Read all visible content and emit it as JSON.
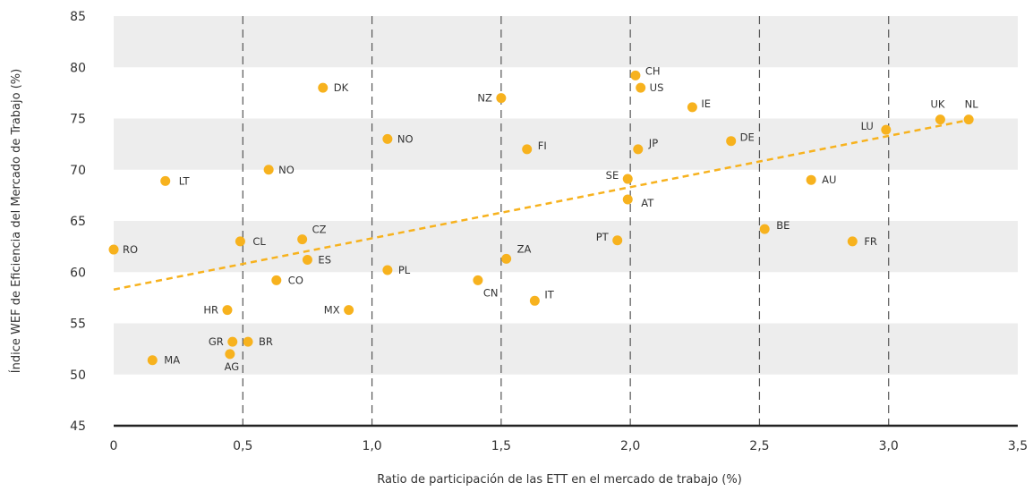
{
  "chart_data": {
    "type": "scatter",
    "xlabel": "Ratio de participación de las ETT en el mercado de trabajo (%)",
    "ylabel": "Índice WEF de Eficiencia del Mercado de Trabajo (%)",
    "xlim": [
      0,
      3.5
    ],
    "ylim": [
      45,
      85
    ],
    "x_ticks": [
      "0",
      "0,5",
      "1,0",
      "1,5",
      "2,0",
      "2,5",
      "3,0",
      "3,5"
    ],
    "y_ticks": [
      "45",
      "50",
      "55",
      "60",
      "65",
      "70",
      "75",
      "80",
      "85"
    ],
    "grid": "dashed vertical lines at x ticks; alternating grey horizontal bands",
    "trendline": {
      "style": "dashed",
      "start": [
        0,
        58.3
      ],
      "end": [
        3.3,
        74.8
      ]
    },
    "point_color": "#F7B21E",
    "band_color": "#EDEDED",
    "points": [
      {
        "label": "RO",
        "x": 0.0,
        "y": 62.2
      },
      {
        "label": "MA",
        "x": 0.15,
        "y": 51.4
      },
      {
        "label": "LT",
        "x": 0.2,
        "y": 68.9
      },
      {
        "label": "HR",
        "x": 0.44,
        "y": 56.3
      },
      {
        "label": "AG",
        "x": 0.45,
        "y": 52.0
      },
      {
        "label": "GR",
        "x": 0.46,
        "y": 53.2
      },
      {
        "label": "CL",
        "x": 0.49,
        "y": 63.0
      },
      {
        "label": "BR",
        "x": 0.52,
        "y": 53.2
      },
      {
        "label": "NO",
        "x": 0.6,
        "y": 70.0
      },
      {
        "label": "CO",
        "x": 0.63,
        "y": 59.2
      },
      {
        "label": "CZ",
        "x": 0.73,
        "y": 63.2
      },
      {
        "label": "ES",
        "x": 0.75,
        "y": 61.2
      },
      {
        "label": "DK",
        "x": 0.81,
        "y": 78.0
      },
      {
        "label": "MX",
        "x": 0.91,
        "y": 56.3
      },
      {
        "label": "NO",
        "x": 1.06,
        "y": 73.0
      },
      {
        "label": "PL",
        "x": 1.06,
        "y": 60.2
      },
      {
        "label": "CN",
        "x": 1.41,
        "y": 59.2
      },
      {
        "label": "NZ",
        "x": 1.5,
        "y": 77.0
      },
      {
        "label": "ZA",
        "x": 1.52,
        "y": 61.3
      },
      {
        "label": "FI",
        "x": 1.6,
        "y": 72.0
      },
      {
        "label": "IT",
        "x": 1.63,
        "y": 57.2
      },
      {
        "label": "PT",
        "x": 1.95,
        "y": 63.1
      },
      {
        "label": "SE",
        "x": 1.99,
        "y": 69.1
      },
      {
        "label": "AT",
        "x": 1.99,
        "y": 67.1
      },
      {
        "label": "CH",
        "x": 2.02,
        "y": 79.2
      },
      {
        "label": "JP",
        "x": 2.03,
        "y": 72.0
      },
      {
        "label": "US",
        "x": 2.04,
        "y": 78.0
      },
      {
        "label": "IE",
        "x": 2.24,
        "y": 76.1
      },
      {
        "label": "DE",
        "x": 2.39,
        "y": 72.8
      },
      {
        "label": "BE",
        "x": 2.52,
        "y": 64.2
      },
      {
        "label": "AU",
        "x": 2.7,
        "y": 69.0
      },
      {
        "label": "FR",
        "x": 2.86,
        "y": 63.0
      },
      {
        "label": "LU",
        "x": 2.99,
        "y": 73.9
      },
      {
        "label": "UK",
        "x": 3.2,
        "y": 74.9
      },
      {
        "label": "NL",
        "x": 3.31,
        "y": 74.9
      }
    ]
  }
}
